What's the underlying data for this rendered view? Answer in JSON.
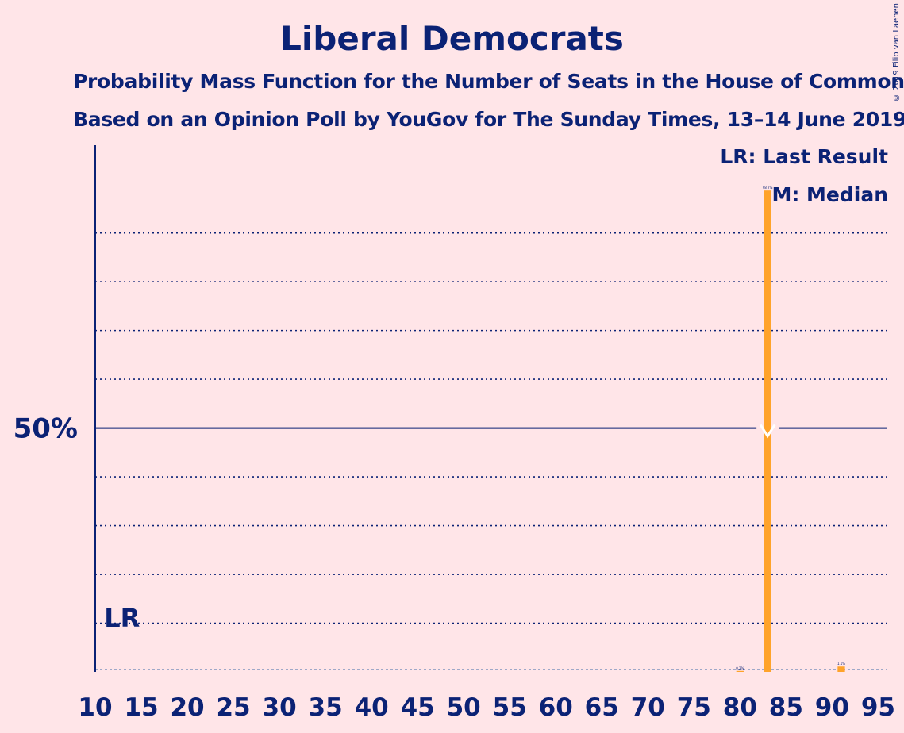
{
  "copyright": "© 2019 Filip van Laenen",
  "chart_data": {
    "type": "bar",
    "title": "Liberal Democrats",
    "subtitle": "Probability Mass Function for the Number of Seats in the House of Commons",
    "subtitle2": "Based on an Opinion Poll by YouGov for The Sunday Times, 13–14 June 2019",
    "xlim": [
      10,
      96
    ],
    "ylim": [
      0,
      108
    ],
    "x_ticks": [
      10,
      15,
      20,
      25,
      30,
      35,
      40,
      45,
      50,
      55,
      60,
      65,
      70,
      75,
      80,
      85,
      90,
      95
    ],
    "y_major_label": "50%",
    "y_major_value": 50,
    "y_minor_gridlines": [
      10,
      20,
      30,
      40,
      60,
      70,
      80,
      90
    ],
    "grid": true,
    "legend": {
      "placement": "top-right",
      "last_result": "LR: Last Result",
      "median": "M: Median"
    },
    "last_result_seat": 12,
    "last_result_label": "LR",
    "median_seat": 83,
    "median_label": "M",
    "bars": [
      {
        "seats": 80,
        "probability": 0.2,
        "label": "0.2%"
      },
      {
        "seats": 83,
        "probability": 98.7,
        "label": "98.7%"
      },
      {
        "seats": 91,
        "probability": 1.1,
        "label": "1.1%"
      }
    ],
    "bar_color": "#FFA32A",
    "axis_color": "#0B2275"
  }
}
